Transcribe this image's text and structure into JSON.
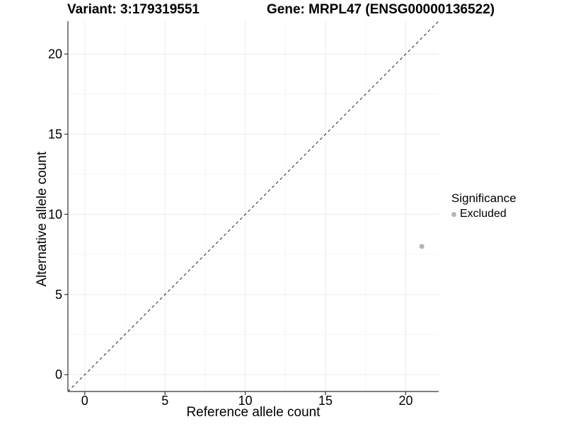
{
  "header": {
    "variant_title": "Variant: 3:179319551",
    "gene_title": "Gene: MRPL47 (ENSG00000136522)"
  },
  "chart_data": {
    "type": "scatter",
    "title": "Variant: 3:179319551   Gene: MRPL47 (ENSG00000136522)",
    "xlabel": "Reference allele count",
    "ylabel": "Alternative allele count",
    "xlim": [
      -1.05,
      22.05
    ],
    "ylim": [
      -1.05,
      22.05
    ],
    "x_ticks": [
      0,
      5,
      10,
      15,
      20
    ],
    "y_ticks": [
      0,
      5,
      10,
      15,
      20
    ],
    "x_minor_ticks": [
      2.5,
      7.5,
      12.5,
      17.5
    ],
    "y_minor_ticks": [
      2.5,
      7.5,
      12.5,
      17.5
    ],
    "grid": "major and minor gridlines on white background",
    "series": [
      {
        "name": "Excluded",
        "color": "#b4b4b4",
        "points": [
          {
            "x": 21,
            "y": 8
          }
        ]
      }
    ],
    "reference_line": {
      "kind": "identity y = x",
      "style": "dashed",
      "color": "#1a1a1a"
    },
    "legend": {
      "title": "Significance",
      "position": "right",
      "items": [
        {
          "label": "Excluded",
          "color": "#b4b4b4"
        }
      ]
    },
    "colors": {
      "grid_major": "#ebebeb",
      "grid_minor": "#f5f5f5",
      "axis_line": "#333333",
      "tick": "#333333",
      "text": "#000000"
    }
  }
}
